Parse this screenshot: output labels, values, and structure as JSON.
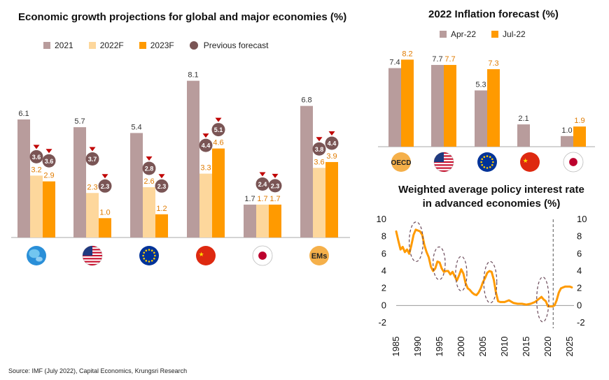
{
  "colors": {
    "c2021": "#b89c9c",
    "c2022": "#fdd79c",
    "c2023": "#ff9a00",
    "prev": "#7a5555",
    "arrow": "#c00000",
    "apr": "#b89c9c",
    "jul": "#ff9a00",
    "line": "#ff9a00",
    "ellipse": "#6b4a5a"
  },
  "source": "Source: IMF (July 2022), Capital Economics, Krungsri Research",
  "chart_data": [
    {
      "type": "bar",
      "title": "Economic growth projections for global and major economies (%)",
      "categories": [
        "Global",
        "US",
        "Euro area",
        "China",
        "Japan",
        "EMs"
      ],
      "category_icons": [
        "globe-icon",
        "us-flag-icon",
        "eu-flag-icon",
        "china-flag-icon",
        "japan-flag-icon",
        "ems-badge-icon"
      ],
      "ems_label": "EMs",
      "legend": {
        "s2021": "2021",
        "s2022": "2022F",
        "s2023": "2023F",
        "prev": "Previous forecast"
      },
      "series": [
        {
          "name": "2021",
          "values": [
            6.1,
            5.7,
            5.4,
            8.1,
            1.7,
            6.8
          ],
          "labels": [
            "6.1",
            "5.7",
            "5.4",
            "8.1",
            "1.7",
            "6.8"
          ]
        },
        {
          "name": "2022F",
          "values": [
            3.2,
            2.3,
            2.6,
            3.3,
            1.7,
            3.6
          ],
          "labels": [
            "3.2",
            "2.3",
            "2.6",
            "3.3",
            "1.7",
            "3.6"
          ]
        },
        {
          "name": "2023F",
          "values": [
            2.9,
            1.0,
            1.2,
            4.6,
            1.7,
            3.9
          ],
          "labels": [
            "2.9",
            "1.0",
            "1.2",
            "4.6",
            "1.7",
            "3.9"
          ]
        }
      ],
      "previous_forecast": {
        "s2022": {
          "values": [
            3.6,
            3.7,
            2.8,
            4.4,
            2.4,
            3.8
          ],
          "labels": [
            "3.6",
            "3.7",
            "2.8",
            "4.4",
            "2.4",
            "3.8"
          ]
        },
        "s2023": {
          "values": [
            3.6,
            2.3,
            2.3,
            5.1,
            2.3,
            4.4
          ],
          "labels": [
            "3.6",
            "2.3",
            "2.3",
            "5.1",
            "2.3",
            "4.4"
          ]
        }
      },
      "ylim": [
        0,
        9
      ]
    },
    {
      "type": "bar",
      "title": "2022 Inflation forecast (%)",
      "categories": [
        "OECD",
        "US",
        "Euro area",
        "China",
        "Japan"
      ],
      "category_icons": [
        "oecd-badge-icon",
        "us-flag-icon",
        "eu-flag-icon",
        "china-flag-icon",
        "japan-flag-icon"
      ],
      "oecd_label": "OECD",
      "legend": {
        "apr": "Apr-22",
        "jul": "Jul-22"
      },
      "series": [
        {
          "name": "Apr-22",
          "values": [
            7.4,
            7.7,
            5.3,
            2.1,
            1.0
          ],
          "labels": [
            "7.4",
            "7.7",
            "5.3",
            "2.1",
            "1.0"
          ]
        },
        {
          "name": "Jul-22",
          "values": [
            8.2,
            7.7,
            7.3,
            null,
            1.9
          ],
          "labels": [
            "8.2",
            "7.7",
            "7.3",
            "",
            "1.9"
          ]
        }
      ],
      "ylim": [
        0,
        9
      ]
    },
    {
      "type": "line",
      "title_line1": "Weighted average policy interest rate",
      "title_line2": "in advanced economies (%)",
      "xlim": [
        1985,
        2026
      ],
      "ylim": [
        -2,
        10
      ],
      "x_ticks": [
        1985,
        1990,
        1995,
        2000,
        2005,
        2010,
        2015,
        2020,
        2025
      ],
      "x_tick_labels": [
        "1985",
        "1990",
        "1995",
        "2000",
        "2005",
        "2010",
        "2015",
        "2020",
        "2025"
      ],
      "y_ticks": [
        -2,
        0,
        2,
        4,
        6,
        8,
        10
      ],
      "y_tick_labels": [
        "-2",
        "0",
        "2",
        "4",
        "6",
        "8",
        "10"
      ],
      "forecast_divider_x": 2021.2,
      "x": [
        1985,
        1985.5,
        1986,
        1986.5,
        1987,
        1987.5,
        1988,
        1988.5,
        1989,
        1989.5,
        1990,
        1990.5,
        1991,
        1991.5,
        1992,
        1992.5,
        1993,
        1993.5,
        1994,
        1994.5,
        1995,
        1995.5,
        1996,
        1996.5,
        1997,
        1997.5,
        1998,
        1998.5,
        1999,
        1999.5,
        2000,
        2000.5,
        2001,
        2001.5,
        2002,
        2002.5,
        2003,
        2003.5,
        2004,
        2004.5,
        2005,
        2005.5,
        2006,
        2006.5,
        2007,
        2007.5,
        2008,
        2008.5,
        2009,
        2009.5,
        2010,
        2011,
        2012,
        2013,
        2014,
        2015,
        2016,
        2017,
        2017.5,
        2018,
        2018.5,
        2019,
        2019.5,
        2020,
        2020.5,
        2021,
        2021.5,
        2022,
        2022.5,
        2023,
        2023.5,
        2024,
        2024.5,
        2025,
        2025.5
      ],
      "y": [
        8.6,
        7.5,
        6.5,
        6.8,
        6.2,
        6.5,
        6.0,
        7.0,
        8.2,
        8.8,
        8.7,
        8.6,
        8.2,
        7.0,
        6.2,
        5.6,
        4.5,
        4.0,
        4.3,
        5.1,
        5.0,
        4.3,
        3.9,
        4.0,
        4.0,
        3.6,
        3.9,
        3.4,
        2.9,
        3.5,
        4.2,
        3.7,
        2.6,
        2.0,
        1.8,
        1.5,
        1.3,
        1.2,
        1.5,
        2.0,
        2.7,
        3.2,
        3.8,
        4.0,
        3.9,
        3.0,
        1.5,
        0.5,
        0.4,
        0.4,
        0.4,
        0.6,
        0.3,
        0.2,
        0.2,
        0.1,
        0.2,
        0.4,
        0.6,
        0.8,
        1.0,
        0.7,
        0.5,
        -0.1,
        -0.1,
        -0.1,
        0.0,
        0.6,
        1.5,
        2.0,
        2.1,
        2.2,
        2.2,
        2.2,
        2.1
      ],
      "highlight_ellipses": [
        {
          "cx": 1989.6,
          "cy": 7.4,
          "rx": 1.6,
          "ry": 2.3
        },
        {
          "cx": 1994.9,
          "cy": 4.9,
          "rx": 1.4,
          "ry": 1.9
        },
        {
          "cx": 2000.0,
          "cy": 3.7,
          "rx": 1.3,
          "ry": 2.0
        },
        {
          "cx": 2006.7,
          "cy": 2.7,
          "rx": 1.5,
          "ry": 2.4
        },
        {
          "cx": 2018.8,
          "cy": 0.7,
          "rx": 1.4,
          "ry": 2.6
        }
      ]
    }
  ]
}
